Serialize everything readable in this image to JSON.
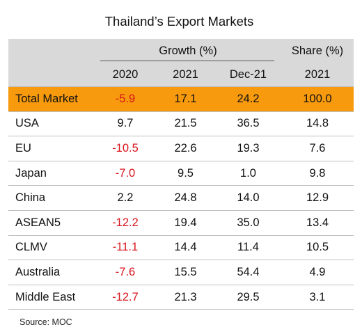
{
  "chart_data": {
    "type": "table",
    "title": "Thailand’s Export Markets",
    "header_groups": [
      {
        "label": "",
        "span": 1
      },
      {
        "label": "Growth (%)",
        "span": 3
      },
      {
        "label": "Share (%)",
        "span": 1
      }
    ],
    "columns": [
      "",
      "2020",
      "2021",
      "Dec-21",
      "2021"
    ],
    "rows": [
      {
        "name": "Total Market",
        "values": [
          "-5.9",
          "17.1",
          "24.2",
          "100.0"
        ],
        "highlight": true
      },
      {
        "name": "USA",
        "values": [
          "9.7",
          "21.5",
          "36.5",
          "14.8"
        ]
      },
      {
        "name": "EU",
        "values": [
          "-10.5",
          "22.6",
          "19.3",
          "7.6"
        ]
      },
      {
        "name": "Japan",
        "values": [
          "-7.0",
          "9.5",
          "1.0",
          "9.8"
        ]
      },
      {
        "name": "China",
        "values": [
          "2.2",
          "24.8",
          "14.0",
          "12.9"
        ]
      },
      {
        "name": "ASEAN5",
        "values": [
          "-12.2",
          "19.4",
          "35.0",
          "13.4"
        ]
      },
      {
        "name": "CLMV",
        "values": [
          "-11.1",
          "14.4",
          "11.4",
          "10.5"
        ]
      },
      {
        "name": "Australia",
        "values": [
          "-7.6",
          "15.5",
          "54.4",
          "4.9"
        ]
      },
      {
        "name": "Middle East",
        "values": [
          "-12.7",
          "21.3",
          "29.5",
          "3.1"
        ]
      }
    ],
    "source": "Source: MOC",
    "colors": {
      "header_bg": "#d9d9d9",
      "highlight_bg": "#f79a0e",
      "negative_text": "#d9141c",
      "text": "#111111"
    }
  }
}
